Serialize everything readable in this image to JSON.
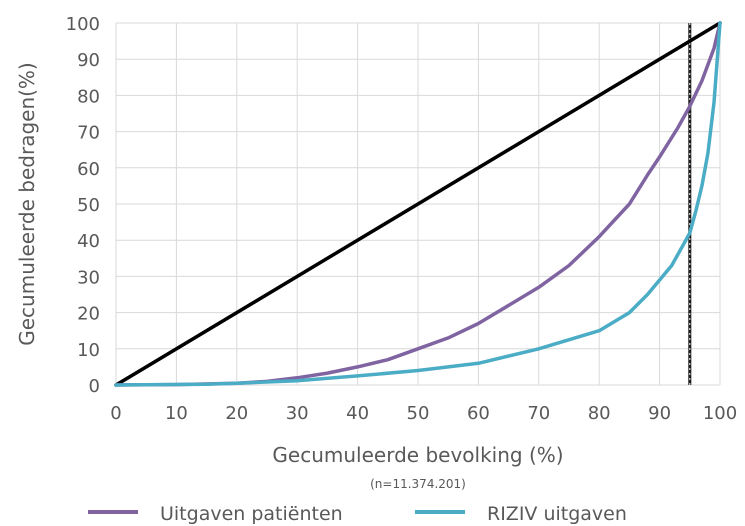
{
  "chart_data": {
    "type": "line",
    "xlabel": "Gecumuleerde bevolking (%)",
    "xlabel_note": "(n=11.374.201)",
    "ylabel": "Gecumuleerde bedragen(%)",
    "xlim": [
      0,
      100
    ],
    "ylim": [
      0,
      100
    ],
    "xticks": [
      0,
      10,
      20,
      30,
      40,
      50,
      60,
      70,
      80,
      90,
      100
    ],
    "yticks": [
      0,
      10,
      20,
      30,
      40,
      50,
      60,
      70,
      80,
      90,
      100
    ],
    "grid": true,
    "legend_position": "bottom",
    "reference_line": {
      "orientation": "vertical",
      "x": 95,
      "color": "#1a1a1a",
      "style": "dotted-bold"
    },
    "series": [
      {
        "name": "",
        "color": "#000000",
        "legend": false,
        "x": [
          0,
          100
        ],
        "y": [
          0,
          100
        ]
      },
      {
        "name": "Uitgaven patiënten",
        "color": "#8064a2",
        "legend": true,
        "x": [
          0,
          10,
          20,
          25,
          30,
          35,
          40,
          45,
          50,
          55,
          60,
          65,
          70,
          75,
          80,
          85,
          88,
          90,
          93,
          95,
          97,
          99,
          100
        ],
        "y": [
          0,
          0.1,
          0.5,
          1.0,
          2.0,
          3.3,
          5.0,
          7.0,
          10.0,
          13.0,
          17.0,
          22.0,
          27.0,
          33.0,
          41.0,
          50.0,
          58.0,
          63.0,
          71.0,
          77.0,
          84.0,
          93.0,
          100.0
        ]
      },
      {
        "name": "RIZIV uitgaven",
        "color": "#4bacc6",
        "legend": true,
        "x": [
          0,
          15,
          20,
          30,
          40,
          50,
          60,
          70,
          80,
          85,
          88,
          90,
          92,
          94,
          95,
          96,
          97,
          98,
          99,
          100
        ],
        "y": [
          0,
          0.2,
          0.5,
          1.2,
          2.5,
          4.0,
          6.0,
          10.0,
          15.0,
          20.0,
          25.0,
          29.0,
          33.0,
          39.0,
          42.0,
          48.0,
          55.0,
          64.0,
          78.0,
          100.0
        ]
      }
    ]
  }
}
